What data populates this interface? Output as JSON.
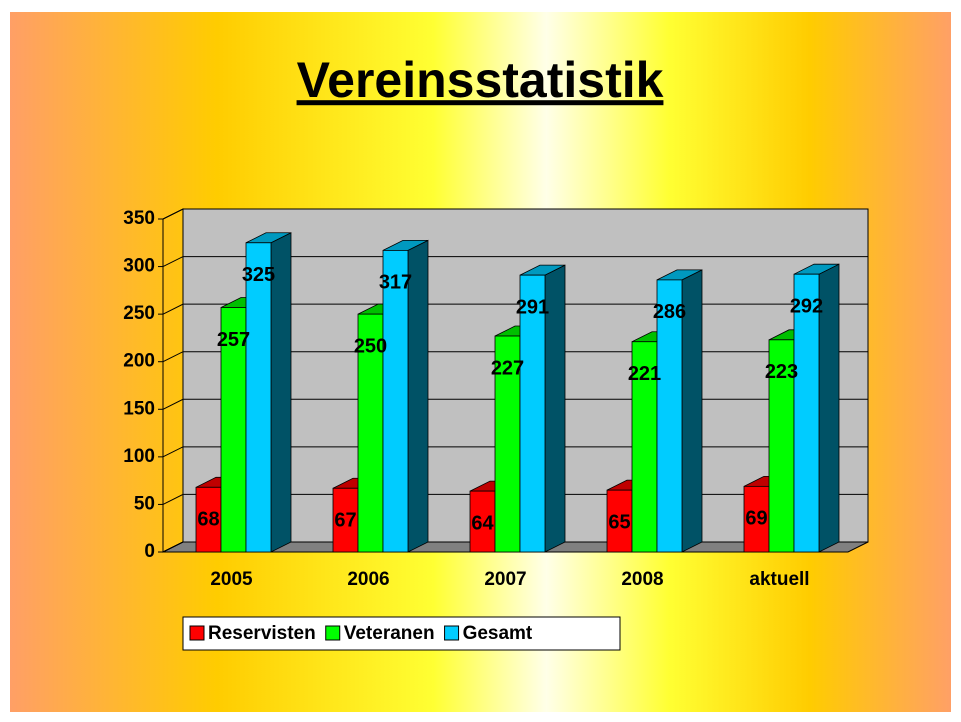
{
  "chart_data": {
    "type": "bar",
    "title": "Vereinsstatistik",
    "categories": [
      "2005",
      "2006",
      "2007",
      "2008",
      "aktuell"
    ],
    "series": [
      {
        "name": "Reservisten",
        "color": "#FF0000",
        "values": [
          68,
          67,
          64,
          65,
          69
        ]
      },
      {
        "name": "Veteranen",
        "color": "#00FF00",
        "values": [
          257,
          250,
          227,
          221,
          223
        ]
      },
      {
        "name": "Gesamt",
        "color": "#00CCFF",
        "values": [
          325,
          317,
          291,
          286,
          292
        ]
      }
    ],
    "ylim": [
      0,
      350
    ],
    "yticks": [
      0,
      50,
      100,
      150,
      200,
      250,
      300,
      350
    ],
    "grid": true,
    "legend": "bottom"
  }
}
